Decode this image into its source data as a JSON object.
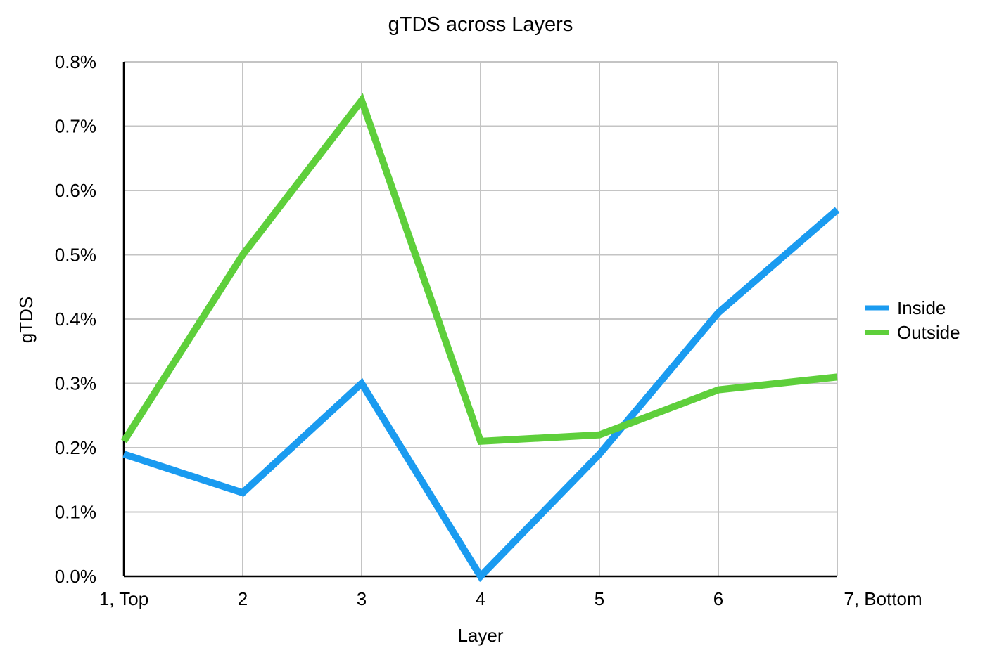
{
  "chart_data": {
    "type": "line",
    "title": "gTDS across Layers",
    "xlabel": "Layer",
    "ylabel": "gTDS",
    "categories": [
      "1, Top",
      "2",
      "3",
      "4",
      "5",
      "6",
      "7, Bottom"
    ],
    "ylim": [
      0,
      0.008
    ],
    "ytick_values": [
      0,
      0.001,
      0.002,
      0.003,
      0.004,
      0.005,
      0.006,
      0.007,
      0.008
    ],
    "ytick_labels": [
      "0.0%",
      "0.1%",
      "0.2%",
      "0.3%",
      "0.4%",
      "0.5%",
      "0.6%",
      "0.7%",
      "0.8%"
    ],
    "grid": true,
    "legend_position": "right",
    "series": [
      {
        "name": "Inside",
        "color": "#1a9bf0",
        "values": [
          0.0019,
          0.0013,
          0.003,
          0.0,
          0.0019,
          0.0041,
          0.0057
        ]
      },
      {
        "name": "Outside",
        "color": "#5ecf3b",
        "values": [
          0.0021,
          0.005,
          0.0074,
          0.0021,
          0.0022,
          0.0029,
          0.0031
        ]
      }
    ]
  }
}
